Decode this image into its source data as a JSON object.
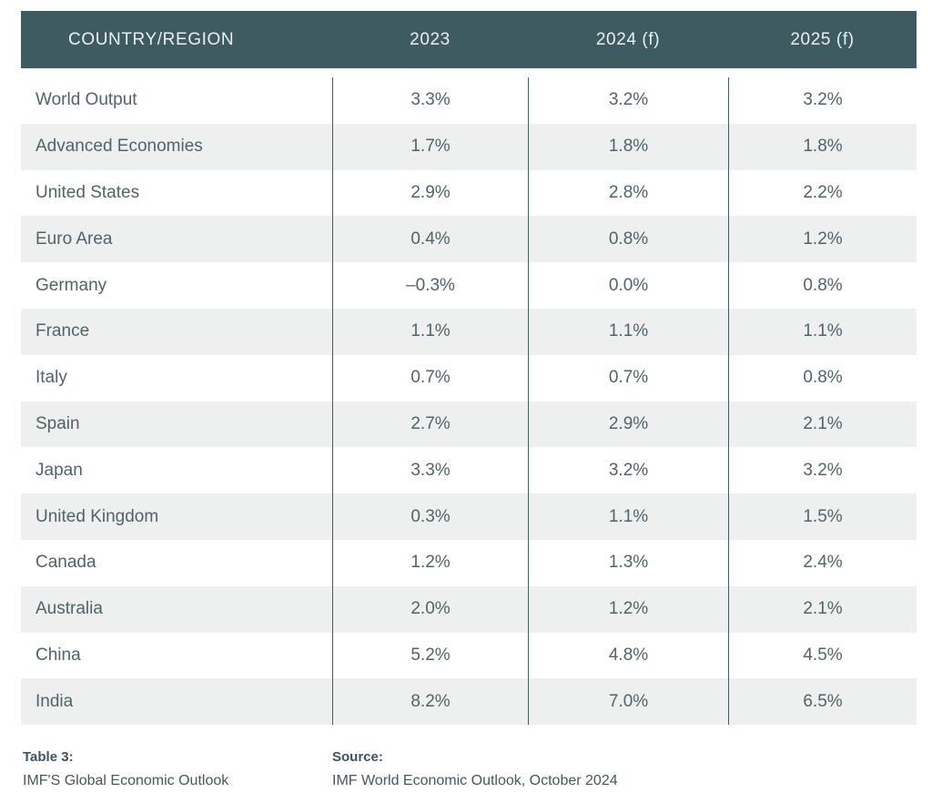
{
  "chart_data": {
    "type": "table",
    "columns": [
      "COUNTRY/REGION",
      "2023",
      "2024 (f)",
      "2025 (f)"
    ],
    "rows": [
      [
        "World Output",
        "3.3%",
        "3.2%",
        "3.2%"
      ],
      [
        "Advanced Economies",
        "1.7%",
        "1.8%",
        "1.8%"
      ],
      [
        "United States",
        "2.9%",
        "2.8%",
        "2.2%"
      ],
      [
        "Euro Area",
        "0.4%",
        "0.8%",
        "1.2%"
      ],
      [
        "Germany",
        "–0.3%",
        "0.0%",
        "0.8%"
      ],
      [
        "France",
        "1.1%",
        "1.1%",
        "1.1%"
      ],
      [
        "Italy",
        "0.7%",
        "0.7%",
        "0.8%"
      ],
      [
        "Spain",
        "2.7%",
        "2.9%",
        "2.1%"
      ],
      [
        "Japan",
        "3.3%",
        "3.2%",
        "3.2%"
      ],
      [
        "United Kingdom",
        "0.3%",
        "1.1%",
        "1.5%"
      ],
      [
        "Canada",
        "1.2%",
        "1.3%",
        "2.4%"
      ],
      [
        "Australia",
        "2.0%",
        "1.2%",
        "2.1%"
      ],
      [
        "China",
        "5.2%",
        "4.8%",
        "4.5%"
      ],
      [
        "India",
        "8.2%",
        "7.0%",
        "6.5%"
      ]
    ],
    "title": "Table 3: IMF'S Global Economic Outlook",
    "source": "IMF World Economic Outlook, October 2024",
    "layout": {
      "striped_rows": "even",
      "grid": "vertical-dividers-only"
    }
  },
  "footer": {
    "table_label": "Table 3:",
    "table_title": "IMF'S Global Economic Outlook",
    "source_label": "Source:",
    "source_text": "IMF World Economic Outlook, October 2024"
  },
  "colors": {
    "header_bg": "#3d5b61",
    "header_text": "#e9f1f0",
    "row_shaded": "#edf0ef",
    "cell_text": "#4f646a",
    "divider": "#3f5d63",
    "footer_bold": "#3c545b",
    "footer_text": "#44585e"
  }
}
